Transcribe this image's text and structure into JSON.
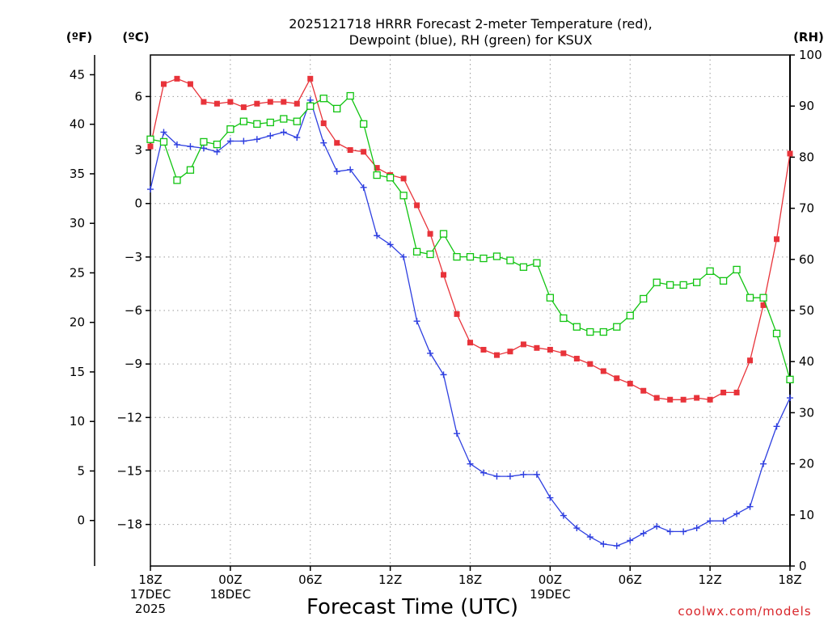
{
  "chart_data": {
    "type": "line",
    "title_line1": "2025121718 HRRR Forecast 2-meter Temperature (red),",
    "title_line2": "Dewpoint (blue), RH (green) for KSUX",
    "unit_f": "(ºF)",
    "unit_c": "(ºC)",
    "unit_rh": "(RH)",
    "xlabel": "Forecast Time (UTC)",
    "credit": "coolwx.com/models",
    "x_range_hours": [
      0,
      48
    ],
    "y_celsius_range": [
      -20.33,
      8.33
    ],
    "rh_range": [
      0,
      100
    ],
    "x_ticks": [
      {
        "hour": 0,
        "lines": [
          "18Z",
          "17DEC",
          "2025"
        ]
      },
      {
        "hour": 6,
        "lines": [
          "00Z",
          "18DEC"
        ]
      },
      {
        "hour": 12,
        "lines": [
          "06Z"
        ]
      },
      {
        "hour": 18,
        "lines": [
          "12Z"
        ]
      },
      {
        "hour": 24,
        "lines": [
          "18Z"
        ]
      },
      {
        "hour": 30,
        "lines": [
          "00Z",
          "19DEC"
        ]
      },
      {
        "hour": 36,
        "lines": [
          "06Z"
        ]
      },
      {
        "hour": 42,
        "lines": [
          "12Z"
        ]
      },
      {
        "hour": 48,
        "lines": [
          "18Z"
        ]
      }
    ],
    "celsius_ticks": [
      "6",
      "3",
      "0",
      "−3",
      "−6",
      "−9",
      "−12",
      "−15",
      "−18"
    ],
    "fahrenheit_ticks": [
      "45",
      "40",
      "35",
      "30",
      "25",
      "20",
      "15",
      "10",
      "5",
      "0"
    ],
    "rh_ticks": [
      "100",
      "90",
      "80",
      "70",
      "60",
      "50",
      "40",
      "30",
      "20",
      "10",
      "0"
    ],
    "series": [
      {
        "name": "Temperature (red)",
        "axis": "celsius",
        "color": "#e8333a",
        "marker": "filled-square",
        "values": [
          3.2,
          6.7,
          7.0,
          6.7,
          5.7,
          5.6,
          5.7,
          5.4,
          5.6,
          5.7,
          5.7,
          5.6,
          7.0,
          4.5,
          3.4,
          3.0,
          2.9,
          2.0,
          1.6,
          1.4,
          -0.1,
          -1.7,
          -4.0,
          -6.2,
          -7.8,
          -8.2,
          -8.5,
          -8.3,
          -7.9,
          -8.1,
          -8.2,
          -8.4,
          -8.7,
          -9.0,
          -9.4,
          -9.8,
          -10.1,
          -10.5,
          -10.9,
          -11.0,
          -11.0,
          -10.9,
          -11.0,
          -10.6,
          -10.6,
          -8.8,
          -5.7,
          -2.0,
          2.8
        ]
      },
      {
        "name": "Dewpoint (blue)",
        "axis": "celsius",
        "color": "#2e3fe0",
        "marker": "plus",
        "values": [
          0.8,
          4.0,
          3.3,
          3.2,
          3.1,
          2.9,
          3.5,
          3.5,
          3.6,
          3.8,
          4.0,
          3.7,
          5.8,
          3.4,
          1.8,
          1.9,
          0.9,
          -1.8,
          -2.3,
          -3.0,
          -6.6,
          -8.4,
          -9.6,
          -12.9,
          -14.6,
          -15.1,
          -15.3,
          -15.3,
          -15.2,
          -15.2,
          -16.5,
          -17.5,
          -18.2,
          -18.7,
          -19.1,
          -19.2,
          -18.9,
          -18.5,
          -18.1,
          -18.4,
          -18.4,
          -18.2,
          -17.8,
          -17.8,
          -17.4,
          -17.0,
          -14.6,
          -12.5,
          -10.9
        ]
      },
      {
        "name": "RH (green)",
        "axis": "rh",
        "color": "#11c411",
        "marker": "open-square",
        "values": [
          83.5,
          83.0,
          75.5,
          77.5,
          83.0,
          82.5,
          85.5,
          87.0,
          86.5,
          86.8,
          87.5,
          87.0,
          90.0,
          91.5,
          89.5,
          92.0,
          86.5,
          76.5,
          76.0,
          72.5,
          61.5,
          61.0,
          65.0,
          60.5,
          60.5,
          60.2,
          60.6,
          59.8,
          58.5,
          59.3,
          52.5,
          48.5,
          46.8,
          45.8,
          45.8,
          46.8,
          49.0,
          52.3,
          55.5,
          55.0,
          55.0,
          55.5,
          57.7,
          55.8,
          58.0,
          52.5,
          52.5,
          45.5,
          36.5
        ]
      }
    ]
  }
}
